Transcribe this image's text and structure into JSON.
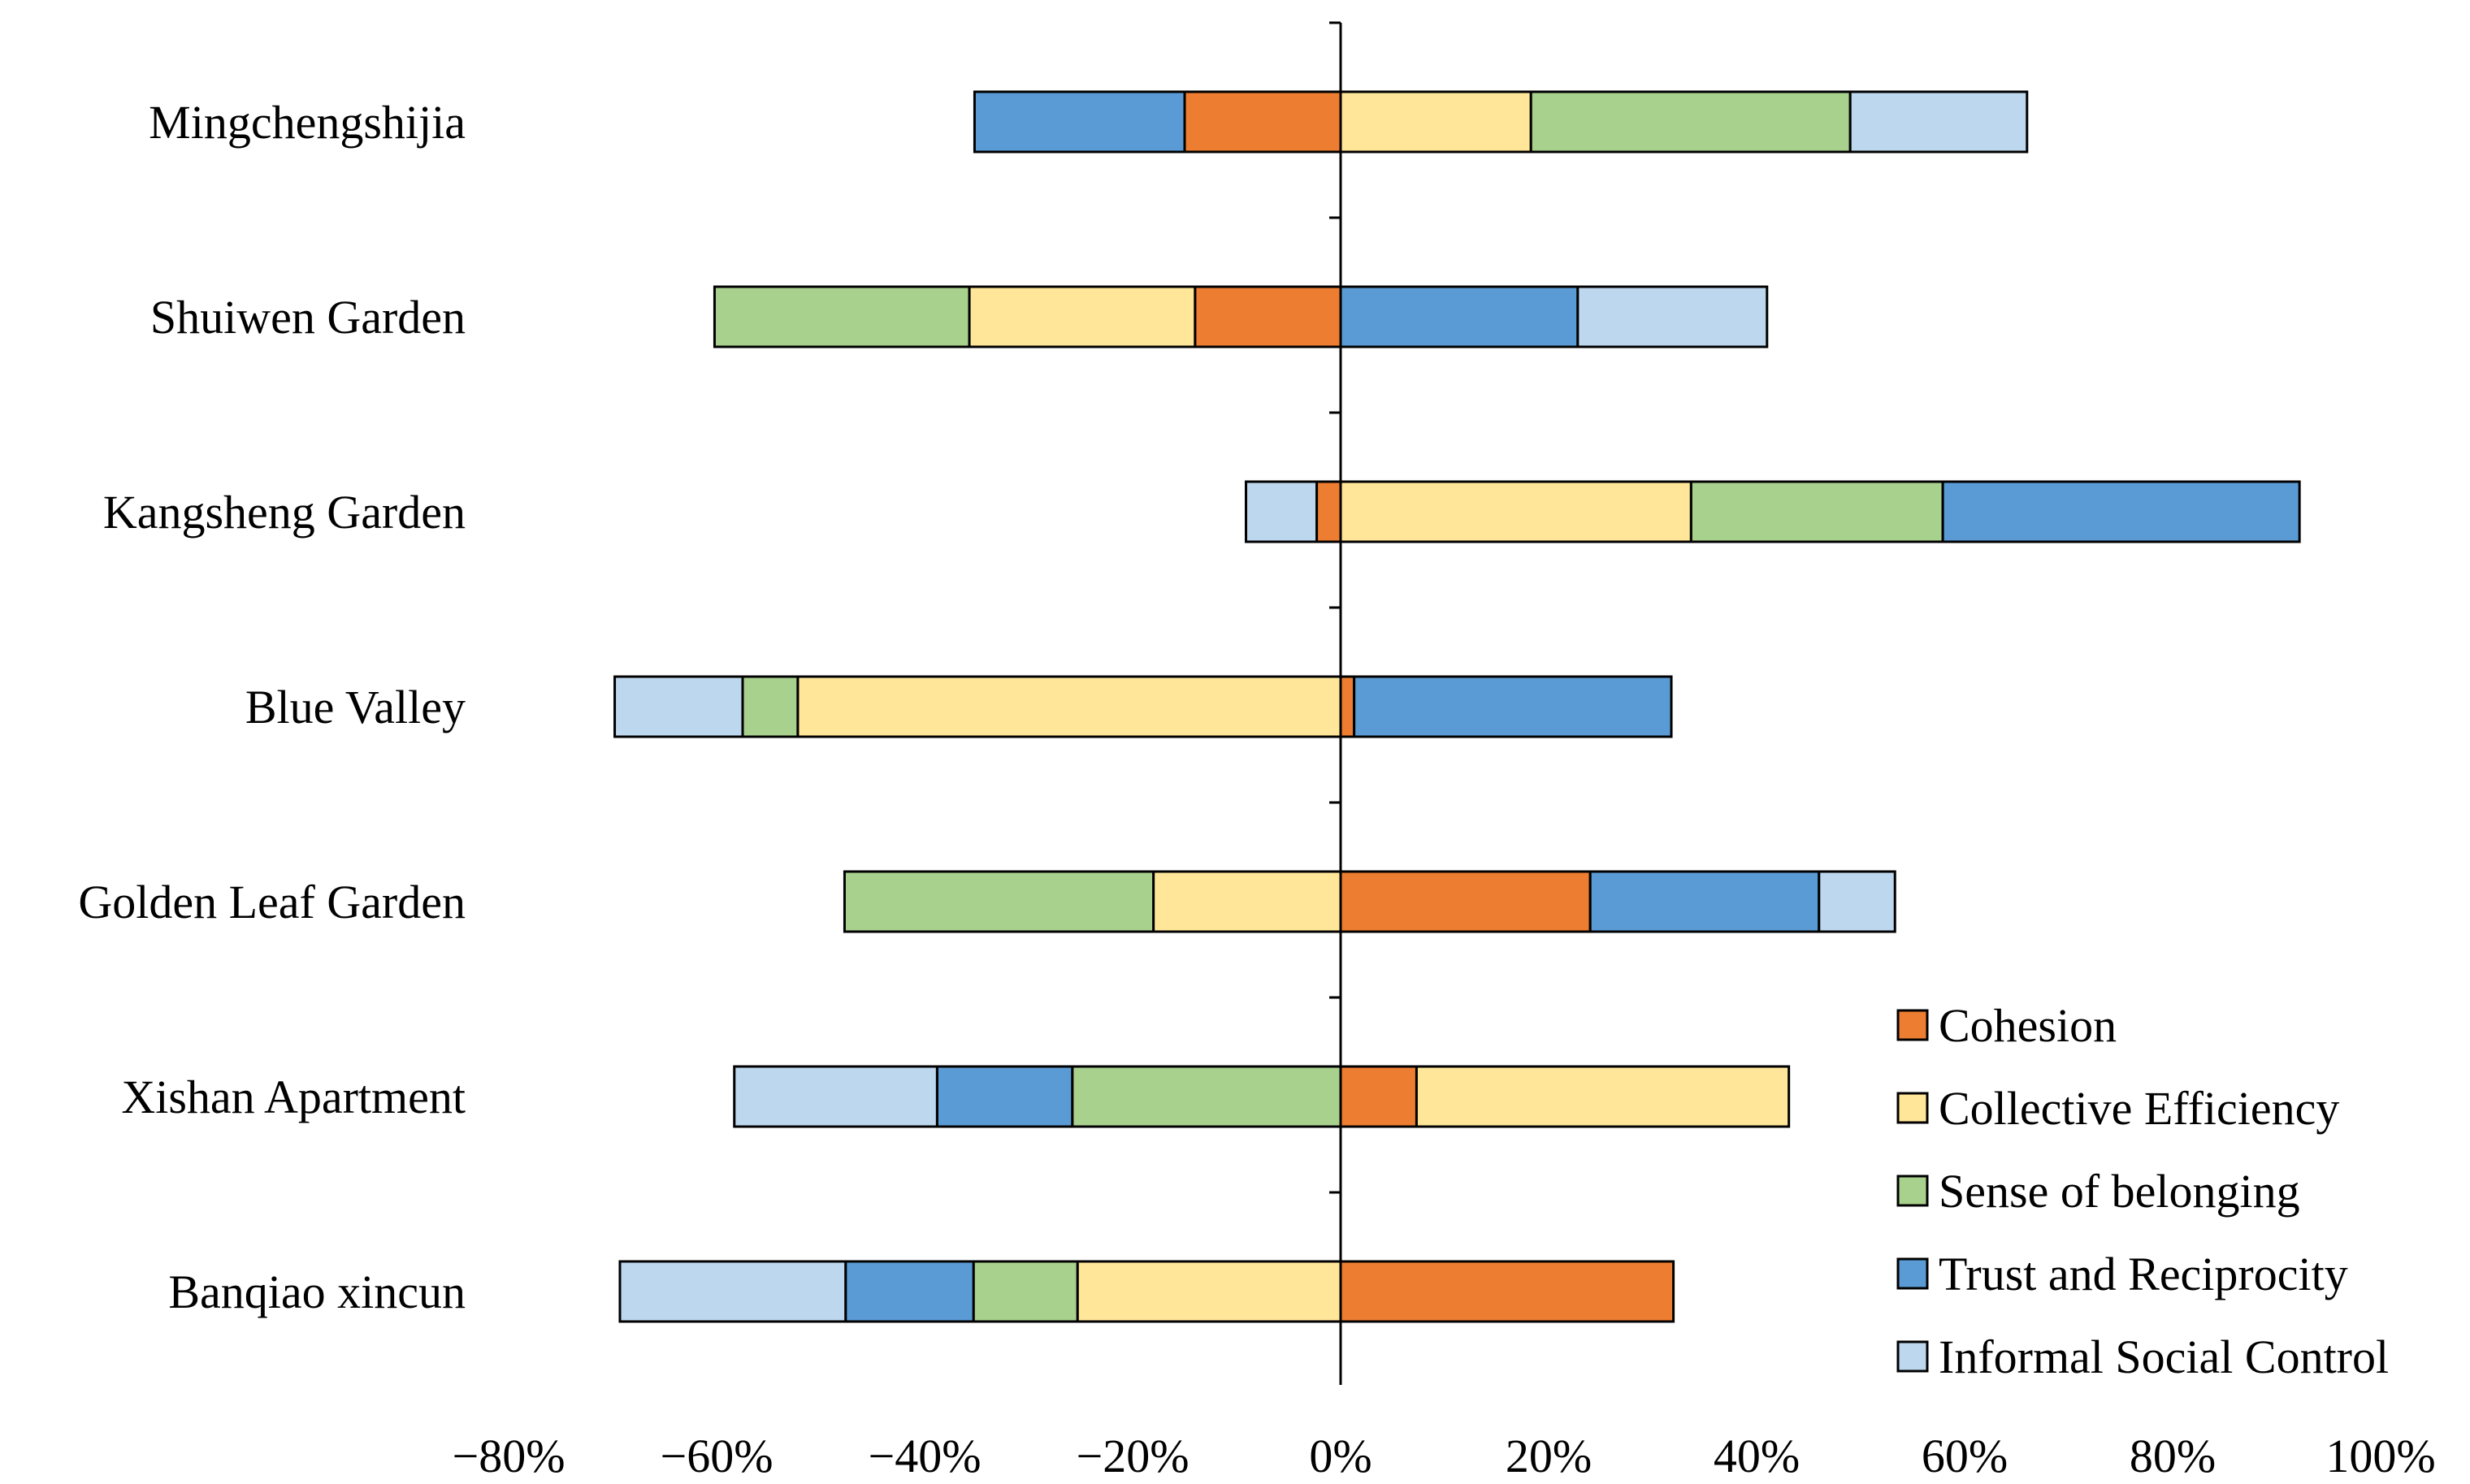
{
  "chart_data": {
    "type": "bar",
    "orientation": "horizontal-diverging-stacked",
    "title": "",
    "xlabel": "",
    "ylabel": "",
    "xlim": [
      -80,
      100
    ],
    "x_ticks": [
      -80,
      -60,
      -40,
      -20,
      0,
      20,
      40,
      60,
      80,
      100
    ],
    "x_tick_labels": [
      "−80%",
      "−60%",
      "−40%",
      "−20%",
      "0%",
      "20%",
      "40%",
      "60%",
      "80%",
      "100%"
    ],
    "grid": false,
    "legend_position": "bottom-right",
    "categories": [
      "Mingchengshijia",
      "Shuiwen Garden",
      "Kangsheng Garden",
      "Blue Valley",
      "Golden Leaf Garden",
      "Xishan Apartment",
      "Banqiao xincun"
    ],
    "series": [
      {
        "name": "Cohesion",
        "color": "#ED7D31",
        "values": [
          -15,
          -14,
          -2.3,
          1.3,
          24,
          7.3,
          32
        ]
      },
      {
        "name": "Collective Efficiency",
        "color": "#FFE699",
        "values": [
          18.3,
          -21.7,
          33.7,
          -52.2,
          -18,
          35.8,
          -25.3
        ]
      },
      {
        "name": "Sense of belonging",
        "color": "#A9D18E",
        "values": [
          30.7,
          -24.5,
          24.2,
          -5.3,
          -29.7,
          -25.8,
          -10
        ]
      },
      {
        "name": "Trust and Reciprocity",
        "color": "#5B9BD5",
        "values": [
          -20.2,
          22.8,
          34.3,
          30.5,
          22,
          -13,
          -12.3
        ]
      },
      {
        "name": "Informal Social Control",
        "color": "#BDD7EE",
        "values": [
          17,
          18.2,
          -6.8,
          -12.3,
          7.3,
          -19.5,
          -21.7
        ]
      }
    ]
  }
}
